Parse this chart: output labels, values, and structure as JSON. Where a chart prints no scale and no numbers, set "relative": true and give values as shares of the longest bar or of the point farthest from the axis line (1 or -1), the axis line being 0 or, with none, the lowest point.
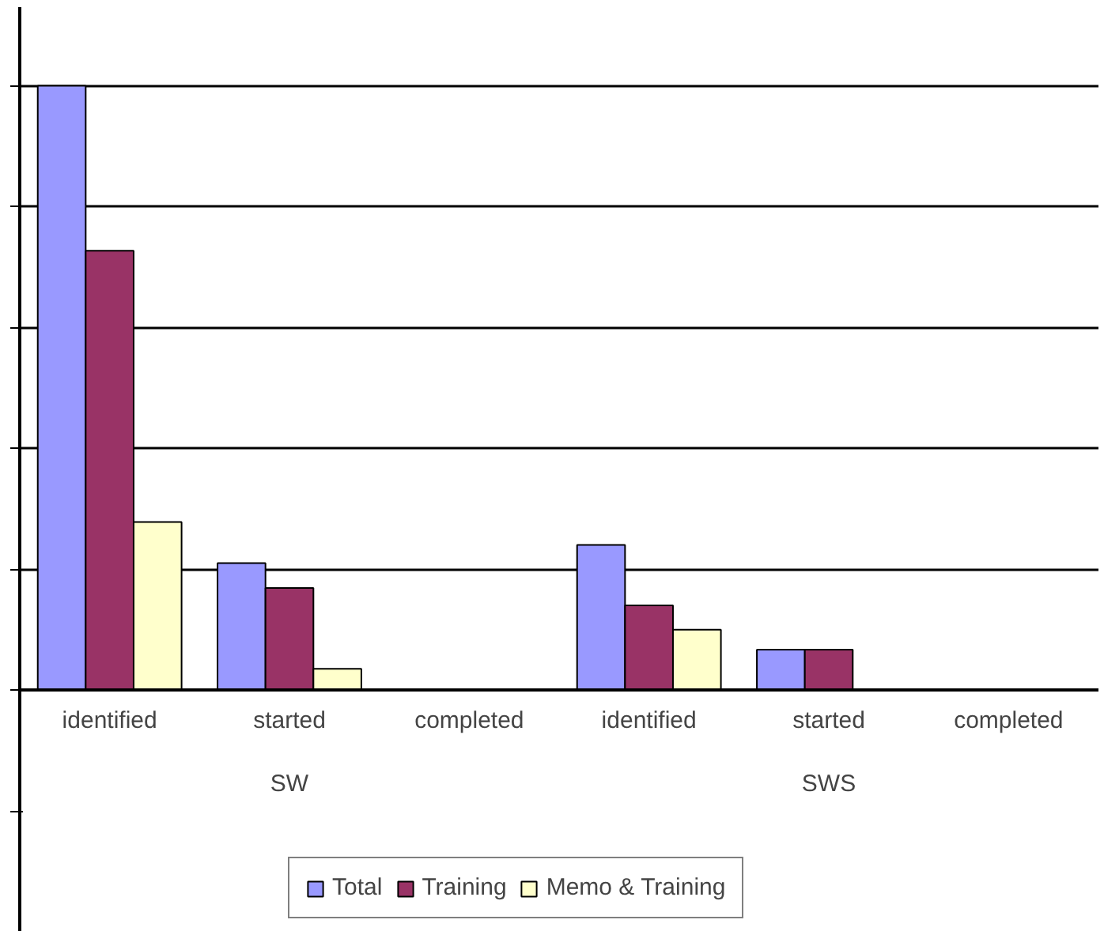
{
  "chart_data": {
    "type": "bar",
    "relative": true,
    "categories": [
      "identified",
      "started",
      "completed",
      "identified",
      "started",
      "completed"
    ],
    "annotations": [
      "SW",
      "SWS"
    ],
    "series": [
      {
        "name": "Total",
        "color": "#9999ff",
        "values": [
          1,
          0.21,
          null,
          0.24,
          0.067,
          null
        ]
      },
      {
        "name": "Training",
        "color": "#993366",
        "values": [
          0.727,
          0.169,
          null,
          0.14,
          0.067,
          null
        ]
      },
      {
        "name": "Memo & Training",
        "color": "#ffffcc",
        "values": [
          0.278,
          0.035,
          null,
          0.1,
          null,
          null
        ]
      }
    ],
    "grid": "y",
    "legend": "bottom"
  }
}
